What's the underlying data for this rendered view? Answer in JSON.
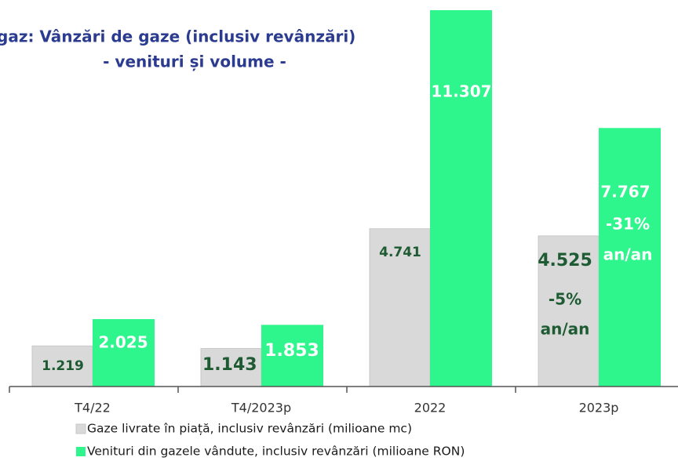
{
  "chart_data": {
    "type": "bar",
    "title": "gaz: Vânzări de gaze (inclusiv revânzări)",
    "subtitle": "- venituri și volume -",
    "categories": [
      "T4/22",
      "T4/2023p",
      "2022",
      "2023p"
    ],
    "series": [
      {
        "name": "Gaze livrate în piață, inclusiv revânzări (milioane mc)",
        "color": "#d9d9d9",
        "values": [
          1219,
          1143,
          4741,
          4525
        ],
        "value_labels": [
          "1.219",
          "1.143",
          "4.741",
          "4.525"
        ]
      },
      {
        "name": "Venituri din gazele vândute, inclusiv revânzări (milioane RON)",
        "color": "#2ef58c",
        "values": [
          2025,
          1853,
          11307,
          7767
        ],
        "value_labels": [
          "2.025",
          "1.853",
          "11.307",
          "7.767"
        ]
      }
    ],
    "annotations": [
      "-5%",
      "an/an",
      "-31%",
      "an/an"
    ]
  }
}
